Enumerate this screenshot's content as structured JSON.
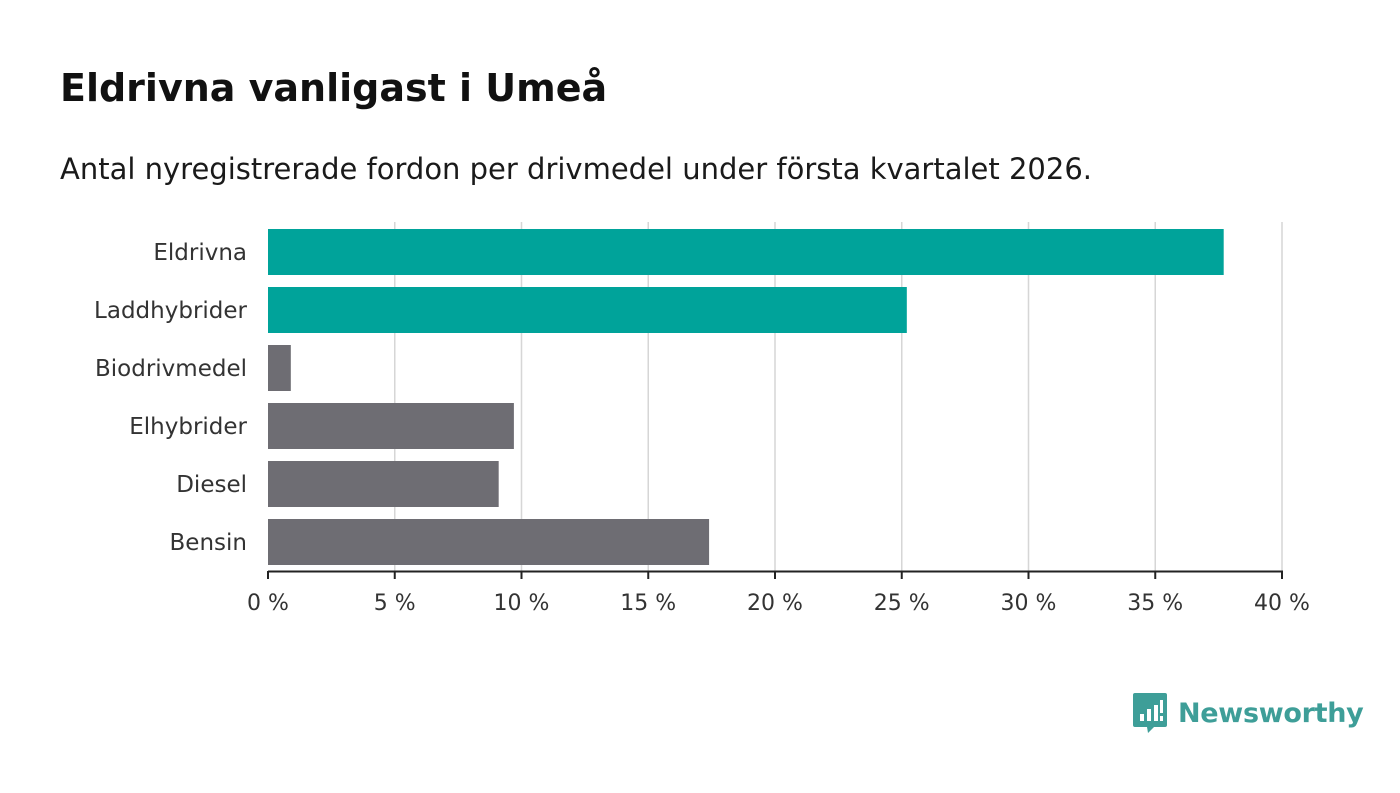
{
  "title": "Eldrivna vanligast i Umeå",
  "subtitle": "Antal nyregistrerade fordon per drivmedel under första kvartalet 2026.",
  "colors": {
    "highlight": "#00a39a",
    "base": "#6e6d73",
    "grid": "#d6d6d6",
    "axis": "#222222"
  },
  "chart_data": {
    "type": "bar",
    "orientation": "horizontal",
    "categories": [
      "Eldrivna",
      "Laddhybrider",
      "Biodrivmedel",
      "Elhybrider",
      "Diesel",
      "Bensin"
    ],
    "values": [
      37.7,
      25.2,
      0.9,
      9.7,
      9.1,
      17.4
    ],
    "highlighted": [
      true,
      true,
      false,
      false,
      false,
      false
    ],
    "xlim": [
      0,
      40
    ],
    "ticks": [
      0,
      5,
      10,
      15,
      20,
      25,
      30,
      35,
      40
    ],
    "tick_labels": [
      "0 %",
      "5 %",
      "10 %",
      "15 %",
      "20 %",
      "25 %",
      "30 %",
      "35 %",
      "40 %"
    ],
    "xlabel": "",
    "ylabel": "",
    "grid": true
  },
  "logo": {
    "name": "Newsworthy",
    "icon": "bar-chart-speech-bubble-icon"
  }
}
